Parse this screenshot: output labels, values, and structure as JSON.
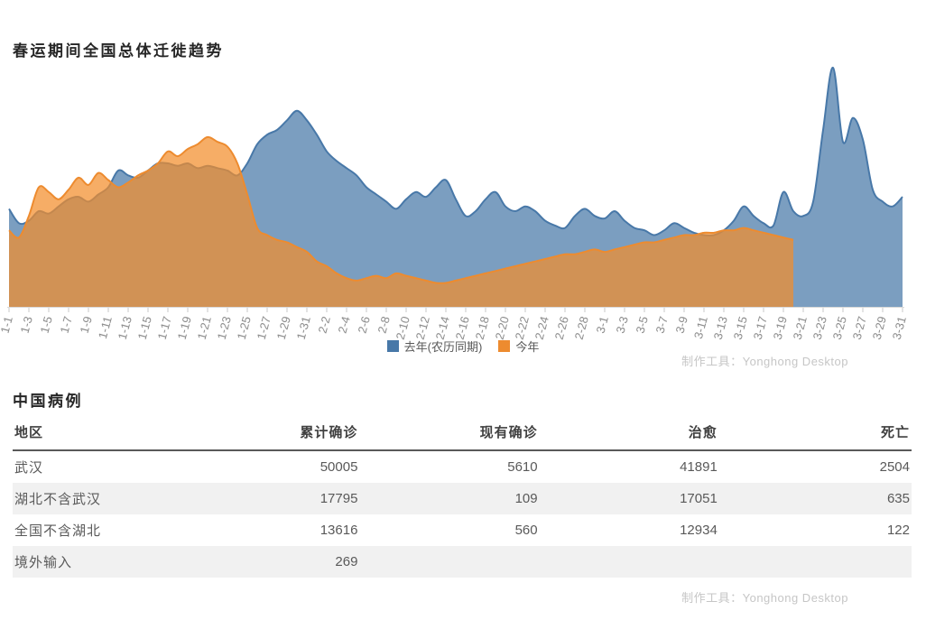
{
  "chart_title": "春运期间全国总体迁徙趋势",
  "chart_watermark": "制作工具：Yonghong Desktop",
  "chart_data": {
    "type": "area",
    "title": "春运期间全国总体迁徙趋势",
    "x_range": [
      "1-1",
      "3-31"
    ],
    "xlabel": "",
    "ylabel": "",
    "grid": false,
    "legend_position": "bottom",
    "x_labels": [
      "1-1",
      "1-3",
      "1-5",
      "1-7",
      "1-9",
      "1-11",
      "1-13",
      "1-15",
      "1-17",
      "1-19",
      "1-21",
      "1-23",
      "1-25",
      "1-27",
      "1-29",
      "1-31",
      "2-2",
      "2-4",
      "2-6",
      "2-8",
      "2-10",
      "2-12",
      "2-14",
      "2-16",
      "2-18",
      "2-20",
      "2-22",
      "2-24",
      "2-26",
      "2-28",
      "3-1",
      "3-3",
      "3-5",
      "3-7",
      "3-9",
      "3-11",
      "3-13",
      "3-15",
      "3-17",
      "3-19",
      "3-21",
      "3-23",
      "3-25",
      "3-27",
      "3-29",
      "3-31"
    ],
    "series": [
      {
        "name": "去年(农历同期)",
        "color": "#4878a8",
        "fill": "rgba(72,120,168,0.72)",
        "values": [
          0.41,
          0.35,
          0.36,
          0.4,
          0.39,
          0.42,
          0.45,
          0.46,
          0.44,
          0.47,
          0.5,
          0.57,
          0.55,
          0.54,
          0.57,
          0.6,
          0.6,
          0.59,
          0.6,
          0.58,
          0.59,
          0.58,
          0.57,
          0.55,
          0.6,
          0.68,
          0.72,
          0.74,
          0.78,
          0.82,
          0.78,
          0.72,
          0.65,
          0.61,
          0.58,
          0.55,
          0.5,
          0.47,
          0.44,
          0.41,
          0.45,
          0.48,
          0.46,
          0.5,
          0.53,
          0.45,
          0.38,
          0.4,
          0.45,
          0.48,
          0.42,
          0.4,
          0.42,
          0.4,
          0.36,
          0.34,
          0.33,
          0.38,
          0.41,
          0.38,
          0.37,
          0.4,
          0.36,
          0.33,
          0.32,
          0.3,
          0.32,
          0.35,
          0.33,
          0.31,
          0.3,
          0.3,
          0.32,
          0.36,
          0.42,
          0.38,
          0.35,
          0.34,
          0.48,
          0.4,
          0.38,
          0.44,
          0.74,
          1.0,
          0.69,
          0.79,
          0.7,
          0.49,
          0.44,
          0.42,
          0.46
        ]
      },
      {
        "name": "今年",
        "color": "#ed8b2f",
        "fill": "rgba(242,142,43,0.72)",
        "values": [
          0.32,
          0.29,
          0.38,
          0.5,
          0.48,
          0.45,
          0.49,
          0.54,
          0.51,
          0.56,
          0.53,
          0.5,
          0.52,
          0.55,
          0.57,
          0.6,
          0.65,
          0.63,
          0.66,
          0.68,
          0.71,
          0.69,
          0.67,
          0.6,
          0.47,
          0.33,
          0.3,
          0.28,
          0.27,
          0.25,
          0.23,
          0.19,
          0.17,
          0.14,
          0.12,
          0.11,
          0.12,
          0.13,
          0.12,
          0.14,
          0.13,
          0.12,
          0.11,
          0.1,
          0.1,
          0.11,
          0.12,
          0.13,
          0.14,
          0.15,
          0.16,
          0.17,
          0.18,
          0.19,
          0.2,
          0.21,
          0.22,
          0.22,
          0.23,
          0.24,
          0.23,
          0.24,
          0.25,
          0.26,
          0.27,
          0.27,
          0.28,
          0.29,
          0.3,
          0.3,
          0.31,
          0.31,
          0.32,
          0.32,
          0.33,
          0.32,
          0.31,
          0.3,
          0.29,
          0.28
        ]
      }
    ]
  },
  "legend": [
    {
      "label": "去年(农历同期)",
      "color": "#4878a8"
    },
    {
      "label": "今年",
      "color": "#ed8b2f"
    }
  ],
  "table": {
    "title": "中国病例",
    "columns": [
      "地区",
      "累计确诊",
      "现有确诊",
      "治愈",
      "死亡"
    ],
    "rows": [
      [
        "武汉",
        "50005",
        "5610",
        "41891",
        "2504"
      ],
      [
        "湖北不含武汉",
        "17795",
        "109",
        "17051",
        "635"
      ],
      [
        "全国不含湖北",
        "13616",
        "560",
        "12934",
        "122"
      ],
      [
        "境外输入",
        "269",
        "",
        "",
        ""
      ]
    ],
    "watermark": "制作工具：Yonghong Desktop"
  }
}
